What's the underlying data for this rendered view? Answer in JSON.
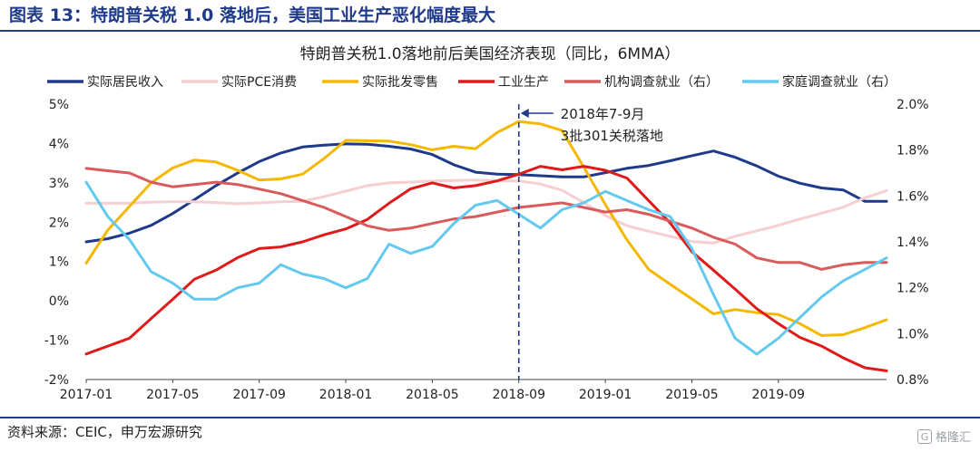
{
  "header": {
    "title": "图表 13：特朗普关税 1.0 落地后，美国工业生产恶化幅度最大"
  },
  "footer": {
    "source": "资料来源：CEIC，申万宏源研究"
  },
  "watermark": {
    "logo_text": "G",
    "text": "格隆汇"
  },
  "chart_data": {
    "type": "line",
    "title": "特朗普关税1.0落地前后美国经济表现（同比，6MMA）",
    "x_ticks": [
      "2017-01",
      "2017-05",
      "2017-09",
      "2018-01",
      "2018-05",
      "2018-09",
      "2019-01",
      "2019-05",
      "2019-09"
    ],
    "y_left": {
      "range": [
        -2,
        5
      ],
      "ticks": [
        "-2%",
        "-1%",
        "0%",
        "1%",
        "2%",
        "3%",
        "4%",
        "5%"
      ]
    },
    "y_right": {
      "range": [
        0.8,
        2.0
      ],
      "ticks": [
        "0.8%",
        "1.0%",
        "1.2%",
        "1.4%",
        "1.6%",
        "1.8%",
        "2.0%"
      ]
    },
    "annotation": {
      "line1": "2018年7-9月",
      "line2": "3批301关税落地",
      "x_index": 20
    },
    "series": [
      {
        "name": "实际居民收入",
        "axis": "left",
        "color": "#1f3a8a",
        "values": [
          1.5,
          1.58,
          1.72,
          1.92,
          2.22,
          2.57,
          2.93,
          3.25,
          3.54,
          3.76,
          3.91,
          3.96,
          3.99,
          3.98,
          3.93,
          3.86,
          3.72,
          3.46,
          3.27,
          3.22,
          3.21,
          3.18,
          3.15,
          3.15,
          3.26,
          3.37,
          3.44,
          3.56,
          3.69,
          3.81,
          3.65,
          3.43,
          3.17,
          2.99,
          2.87,
          2.82,
          2.53,
          2.53
        ]
      },
      {
        "name": "实际PCE消费",
        "axis": "left",
        "color": "#f6cfd0",
        "values": [
          2.48,
          2.48,
          2.48,
          2.51,
          2.52,
          2.52,
          2.5,
          2.47,
          2.49,
          2.52,
          2.53,
          2.65,
          2.79,
          2.93,
          3.0,
          3.02,
          3.05,
          3.06,
          3.07,
          3.05,
          3.05,
          2.97,
          2.81,
          2.5,
          2.17,
          1.91,
          1.77,
          1.64,
          1.51,
          1.47,
          1.64,
          1.78,
          1.92,
          2.08,
          2.23,
          2.38,
          2.62,
          2.8
        ]
      },
      {
        "name": "实际批发零售",
        "axis": "left",
        "color": "#f5b800",
        "values": [
          0.96,
          1.8,
          2.4,
          3.0,
          3.38,
          3.58,
          3.53,
          3.32,
          3.07,
          3.1,
          3.22,
          3.62,
          4.08,
          4.07,
          4.06,
          3.97,
          3.84,
          3.93,
          3.87,
          4.28,
          4.56,
          4.5,
          4.33,
          3.4,
          2.45,
          1.55,
          0.8,
          0.42,
          0.05,
          -0.33,
          -0.22,
          -0.3,
          -0.35,
          -0.58,
          -0.88,
          -0.86,
          -0.68,
          -0.48
        ]
      },
      {
        "name": "工业生产",
        "axis": "left",
        "color": "#e01a1a",
        "values": [
          -1.35,
          -1.15,
          -0.95,
          -0.45,
          0.04,
          0.55,
          0.78,
          1.1,
          1.33,
          1.37,
          1.5,
          1.68,
          1.83,
          2.07,
          2.48,
          2.85,
          3.0,
          2.87,
          2.93,
          3.05,
          3.22,
          3.42,
          3.33,
          3.42,
          3.32,
          3.12,
          2.55,
          1.98,
          1.25,
          0.78,
          0.3,
          -0.2,
          -0.58,
          -0.93,
          -1.15,
          -1.45,
          -1.7,
          -1.78
        ]
      },
      {
        "name": "机构调查就业（右）",
        "axis": "right",
        "color": "#d95b5b",
        "values": [
          1.72,
          1.71,
          1.7,
          1.66,
          1.64,
          1.65,
          1.66,
          1.65,
          1.63,
          1.61,
          1.58,
          1.55,
          1.51,
          1.47,
          1.45,
          1.46,
          1.48,
          1.5,
          1.51,
          1.53,
          1.55,
          1.56,
          1.57,
          1.55,
          1.53,
          1.54,
          1.52,
          1.49,
          1.46,
          1.42,
          1.39,
          1.33,
          1.31,
          1.31,
          1.28,
          1.3,
          1.31,
          1.31
        ]
      },
      {
        "name": "家庭调查就业（右）",
        "axis": "right",
        "color": "#63c9ee",
        "values": [
          1.66,
          1.51,
          1.41,
          1.27,
          1.22,
          1.15,
          1.15,
          1.2,
          1.22,
          1.3,
          1.26,
          1.24,
          1.2,
          1.24,
          1.39,
          1.35,
          1.38,
          1.48,
          1.56,
          1.58,
          1.52,
          1.46,
          1.54,
          1.57,
          1.62,
          1.58,
          1.54,
          1.51,
          1.37,
          1.17,
          0.98,
          0.91,
          0.98,
          1.07,
          1.16,
          1.23,
          1.28,
          1.33
        ]
      }
    ]
  }
}
